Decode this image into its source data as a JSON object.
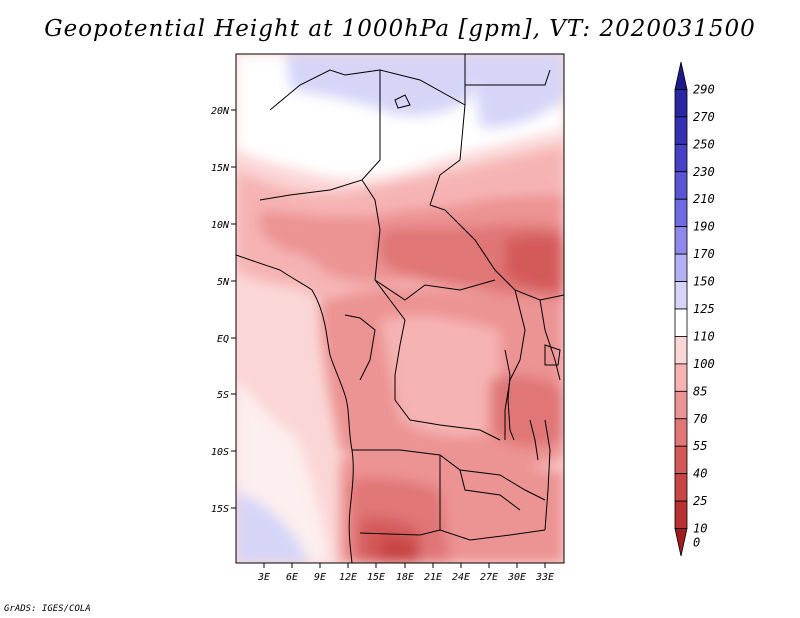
{
  "title": "Geopotential Height at 1000hPa [gpm], VT: 2020031500",
  "credit": "GrADS: IGES/COLA",
  "map": {
    "lat_labels": [
      "20N",
      "15N",
      "10N",
      "5N",
      "EQ",
      "5S",
      "10S",
      "15S"
    ],
    "lon_labels": [
      "3E",
      "6E",
      "9E",
      "12E",
      "15E",
      "18E",
      "21E",
      "24E",
      "27E",
      "30E",
      "33E"
    ]
  },
  "colorbar": {
    "levels": [
      "290",
      "270",
      "250",
      "230",
      "210",
      "190",
      "170",
      "150",
      "125",
      "110",
      "100",
      "85",
      "70",
      "55",
      "40",
      "25",
      "10",
      "0"
    ],
    "colors": [
      "#1c1a8a",
      "#2a27a3",
      "#3531b3",
      "#4540c4",
      "#5a55d2",
      "#706be0",
      "#8e89ea",
      "#b3b0f3",
      "#d6d5f8",
      "#ffffff",
      "#fbd6d6",
      "#f6b3b3",
      "#ec9393",
      "#e07676",
      "#d45a5a",
      "#c84545",
      "#b83030",
      "#a01c1c"
    ]
  }
}
